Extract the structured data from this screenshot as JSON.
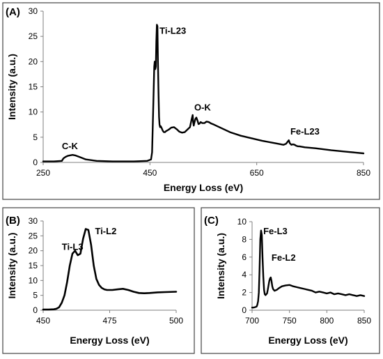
{
  "chart_data": [
    {
      "panel": "(A)",
      "type": "line",
      "xlabel": "Energy Loss (eV)",
      "ylabel": "Intensity (a.u.)",
      "xlim": [
        250,
        850
      ],
      "ylim": [
        0,
        30
      ],
      "xticks": [
        250,
        450,
        650,
        850
      ],
      "yticks": [
        0,
        5,
        10,
        15,
        20,
        25,
        30
      ],
      "grid": false,
      "legend": "none",
      "annotations": [
        {
          "text": "C-K",
          "x": 285,
          "y": 2.6
        },
        {
          "text": "Ti-L23",
          "x": 468,
          "y": 25.5
        },
        {
          "text": "O-K",
          "x": 533,
          "y": 10.3
        },
        {
          "text": "Fe-L23",
          "x": 713,
          "y": 5.5
        }
      ],
      "series": [
        {
          "x": [
            250,
            270,
            285,
            288,
            292,
            296,
            300,
            305,
            310,
            320,
            330,
            350,
            380,
            420,
            445,
            452,
            454,
            456,
            458,
            459,
            460,
            461,
            462,
            463,
            464,
            465,
            466,
            467,
            468,
            469,
            470,
            472,
            474,
            476,
            478,
            480,
            485,
            490,
            495,
            500,
            505,
            510,
            515,
            520,
            525,
            528,
            530,
            531,
            532,
            533,
            535,
            537,
            539,
            541,
            543,
            545,
            548,
            552,
            556,
            560,
            565,
            570,
            580,
            600,
            620,
            640,
            660,
            680,
            700,
            705,
            708,
            710,
            712,
            715,
            718,
            721,
            724,
            727,
            730,
            740,
            760,
            790,
            820,
            850
          ],
          "y": [
            0.2,
            0.2,
            0.3,
            0.8,
            1.1,
            1.3,
            1.4,
            1.5,
            1.4,
            1.0,
            0.6,
            0.3,
            0.2,
            0.2,
            0.3,
            0.6,
            2.0,
            10.0,
            19.0,
            20.0,
            18.5,
            19.0,
            24.0,
            27.3,
            27.0,
            20.0,
            14.0,
            9.0,
            7.5,
            7.0,
            7.2,
            6.8,
            6.3,
            6.0,
            6.0,
            6.2,
            6.5,
            6.9,
            7.0,
            6.6,
            6.1,
            5.9,
            6.0,
            6.5,
            7.0,
            8.5,
            9.4,
            8.0,
            7.3,
            7.8,
            8.6,
            8.9,
            8.3,
            7.6,
            7.7,
            8.0,
            7.8,
            7.8,
            8.1,
            8.0,
            7.7,
            7.5,
            7.0,
            6.0,
            5.3,
            4.8,
            4.3,
            3.9,
            3.5,
            3.7,
            4.1,
            4.4,
            3.8,
            3.5,
            3.6,
            3.5,
            3.3,
            3.2,
            3.2,
            3.0,
            2.8,
            2.4,
            2.1,
            1.8
          ]
        }
      ]
    },
    {
      "panel": "(B)",
      "type": "line",
      "xlabel": "Energy Loss (eV)",
      "ylabel": "Intensity (a.u.)",
      "xlim": [
        450,
        500
      ],
      "ylim": [
        0,
        30
      ],
      "xticks": [
        450,
        475,
        500
      ],
      "yticks": [
        0,
        5,
        10,
        15,
        20,
        25,
        30
      ],
      "grid": false,
      "legend": "none",
      "annotations": [
        {
          "text": "Ti-L3",
          "x": 457,
          "y": 20.3
        },
        {
          "text": "Ti-L2",
          "x": 469.5,
          "y": 25.5
        }
      ],
      "series": [
        {
          "x": [
            450,
            452,
            454,
            455,
            456,
            457,
            458,
            459,
            460,
            461,
            462,
            463,
            464,
            465,
            466,
            467,
            468,
            469,
            470,
            471,
            472,
            473,
            474,
            476,
            478,
            480,
            482,
            484,
            486,
            488,
            490,
            493,
            496,
            500
          ],
          "y": [
            0.2,
            0.2,
            0.3,
            0.5,
            1.0,
            2.5,
            5.0,
            9.5,
            15.0,
            19.0,
            20.0,
            18.5,
            19.0,
            24.0,
            27.3,
            27.0,
            22.0,
            15.0,
            10.5,
            8.5,
            7.5,
            7.0,
            6.8,
            6.8,
            7.0,
            7.2,
            6.8,
            6.2,
            5.8,
            5.7,
            5.8,
            6.0,
            6.1,
            6.2
          ]
        }
      ]
    },
    {
      "panel": "(C)",
      "type": "line",
      "xlabel": "Energy Loss (eV)",
      "ylabel": "Intensity (a.u.)",
      "xlim": [
        700,
        850
      ],
      "ylim": [
        0,
        10
      ],
      "xticks": [
        700,
        750,
        800,
        850
      ],
      "yticks": [
        0,
        2,
        4,
        6,
        8,
        10
      ],
      "grid": false,
      "legend": "none",
      "annotations": [
        {
          "text": "Fe-L3",
          "x": 715,
          "y": 8.6
        },
        {
          "text": "Fe-L2",
          "x": 726,
          "y": 5.6
        }
      ],
      "series": [
        {
          "x": [
            700,
            702,
            704,
            706,
            707,
            708,
            709,
            710,
            711,
            712,
            713,
            714,
            715,
            716,
            717,
            718,
            719,
            720,
            721,
            722,
            723,
            724,
            725,
            726,
            727,
            728,
            730,
            733,
            736,
            740,
            745,
            750,
            755,
            760,
            765,
            770,
            775,
            780,
            785,
            790,
            795,
            800,
            805,
            810,
            815,
            820,
            825,
            830,
            835,
            840,
            845,
            850
          ],
          "y": [
            0.3,
            0.3,
            0.35,
            0.4,
            0.6,
            1.0,
            2.0,
            4.5,
            8.0,
            9.0,
            8.5,
            6.0,
            3.8,
            2.3,
            1.8,
            1.7,
            1.8,
            1.9,
            2.3,
            2.8,
            3.3,
            3.6,
            3.7,
            3.3,
            2.7,
            2.4,
            2.2,
            2.3,
            2.5,
            2.7,
            2.8,
            2.85,
            2.7,
            2.6,
            2.5,
            2.4,
            2.3,
            2.2,
            2.0,
            2.1,
            2.0,
            1.9,
            2.0,
            1.8,
            1.9,
            1.8,
            1.7,
            1.8,
            1.7,
            1.6,
            1.7,
            1.6
          ]
        }
      ]
    }
  ]
}
